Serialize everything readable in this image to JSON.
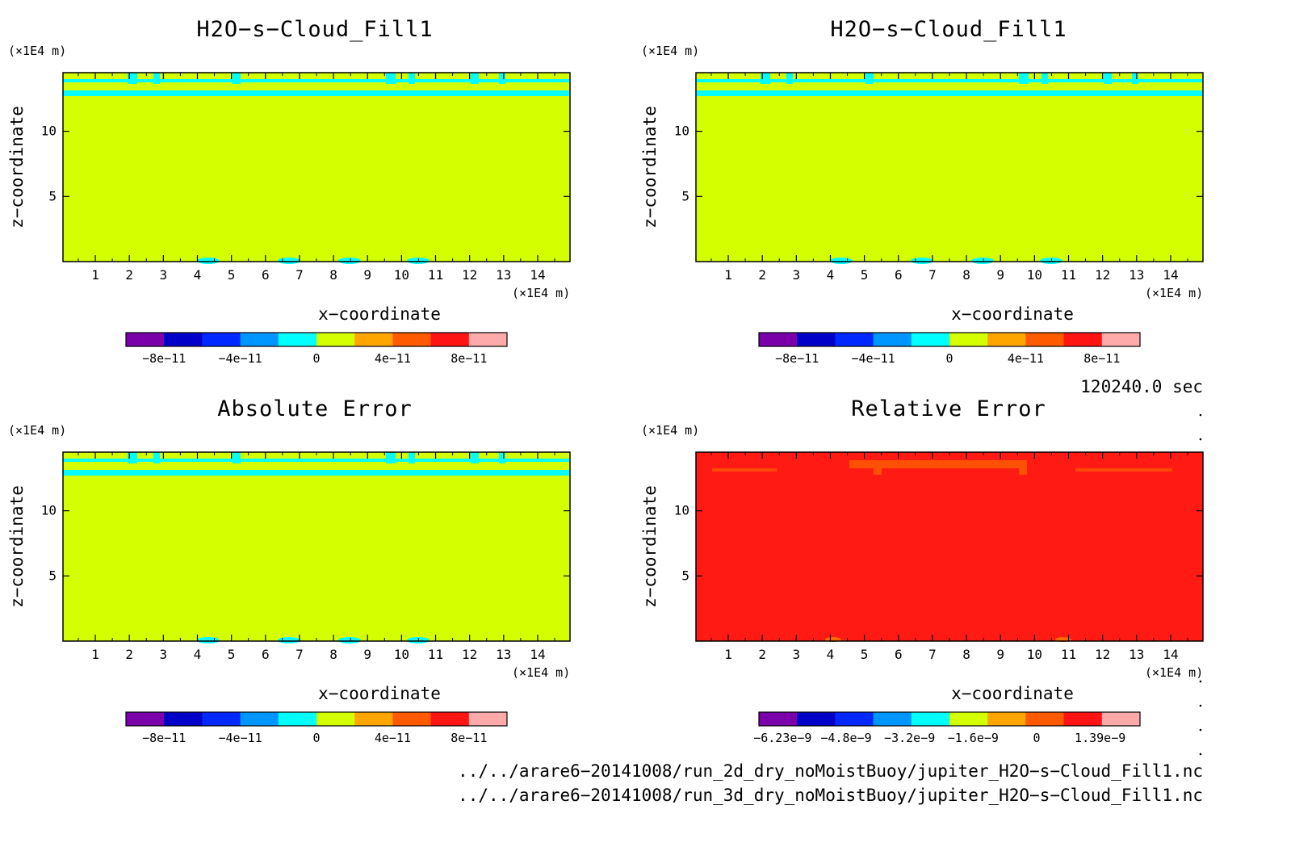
{
  "chart_data": [
    {
      "type": "heatmap",
      "title": "H2O−s−Cloud_Fill1",
      "xlabel": "x−coordinate",
      "ylabel": "z−coordinate",
      "x_unit": "(×1E4 m)",
      "y_unit": "(×1E4 m)",
      "xticks": [
        "1",
        "2",
        "3",
        "4",
        "5",
        "6",
        "7",
        "8",
        "9",
        "10",
        "11",
        "12",
        "13",
        "14"
      ],
      "yticks": [
        "5",
        "10"
      ],
      "xlim": [
        0.05,
        14.95
      ],
      "ylim": [
        0,
        14.5
      ],
      "fill_color": "#d4ff00",
      "feature_color": "#00ffff",
      "colorbar": {
        "colors": [
          "#7a00aa",
          "#0000c8",
          "#0028ff",
          "#0096ff",
          "#00ffff",
          "#d4ff00",
          "#ffa500",
          "#ff5a00",
          "#ff1414",
          "#ffaaaa"
        ],
        "ticks": [
          "−8e−11",
          "−4e−11",
          "0",
          "4e−11",
          "8e−11"
        ]
      }
    },
    {
      "type": "heatmap",
      "title": "H2O−s−Cloud_Fill1",
      "xlabel": "x−coordinate",
      "ylabel": "z−coordinate",
      "x_unit": "(×1E4 m)",
      "y_unit": "(×1E4 m)",
      "xticks": [
        "1",
        "2",
        "3",
        "4",
        "5",
        "6",
        "7",
        "8",
        "9",
        "10",
        "11",
        "12",
        "13",
        "14"
      ],
      "yticks": [
        "5",
        "10"
      ],
      "xlim": [
        0.05,
        14.95
      ],
      "ylim": [
        0,
        14.5
      ],
      "fill_color": "#d4ff00",
      "feature_color": "#00ffff",
      "colorbar": {
        "colors": [
          "#7a00aa",
          "#0000c8",
          "#0028ff",
          "#0096ff",
          "#00ffff",
          "#d4ff00",
          "#ffa500",
          "#ff5a00",
          "#ff1414",
          "#ffaaaa"
        ],
        "ticks": [
          "−8e−11",
          "−4e−11",
          "0",
          "4e−11",
          "8e−11"
        ]
      }
    },
    {
      "type": "heatmap",
      "title": "Absolute Error",
      "xlabel": "x−coordinate",
      "ylabel": "z−coordinate",
      "x_unit": "(×1E4 m)",
      "y_unit": "(×1E4 m)",
      "xticks": [
        "1",
        "2",
        "3",
        "4",
        "5",
        "6",
        "7",
        "8",
        "9",
        "10",
        "11",
        "12",
        "13",
        "14"
      ],
      "yticks": [
        "5",
        "10"
      ],
      "xlim": [
        0.05,
        14.95
      ],
      "ylim": [
        0,
        14.5
      ],
      "fill_color": "#d4ff00",
      "feature_color": "#00ffff",
      "colorbar": {
        "colors": [
          "#7a00aa",
          "#0000c8",
          "#0028ff",
          "#0096ff",
          "#00ffff",
          "#d4ff00",
          "#ffa500",
          "#ff5a00",
          "#ff1414",
          "#ffaaaa"
        ],
        "ticks": [
          "−8e−11",
          "−4e−11",
          "0",
          "4e−11",
          "8e−11"
        ]
      }
    },
    {
      "type": "heatmap",
      "title": "Relative Error",
      "xlabel": "x−coordinate",
      "ylabel": "z−coordinate",
      "x_unit": "(×1E4 m)",
      "y_unit": "(×1E4 m)",
      "xticks": [
        "1",
        "2",
        "3",
        "4",
        "5",
        "6",
        "7",
        "8",
        "9",
        "10",
        "11",
        "12",
        "13",
        "14"
      ],
      "yticks": [
        "5",
        "10"
      ],
      "xlim": [
        0.05,
        14.95
      ],
      "ylim": [
        0,
        14.5
      ],
      "fill_color": "#ff1a14",
      "feature_color": "#ff6a00",
      "colorbar": {
        "colors": [
          "#7a00aa",
          "#0000c8",
          "#0028ff",
          "#0096ff",
          "#00ffff",
          "#d4ff00",
          "#ffa500",
          "#ff5a00",
          "#ff1414",
          "#ffaaaa"
        ],
        "ticks": [
          "−6.23e−9",
          "−4.8e−9",
          "−3.2e−9",
          "−1.6e−9",
          "0",
          "1.39e−9"
        ]
      }
    }
  ],
  "time_label": "120240.0 sec",
  "file_paths": [
    "../../arare6−20141008/run_2d_dry_noMoistBuoy/jupiter_H2O−s−Cloud_Fill1.nc",
    "../../arare6−20141008/run_3d_dry_noMoistBuoy/jupiter_H2O−s−Cloud_Fill1.nc"
  ]
}
